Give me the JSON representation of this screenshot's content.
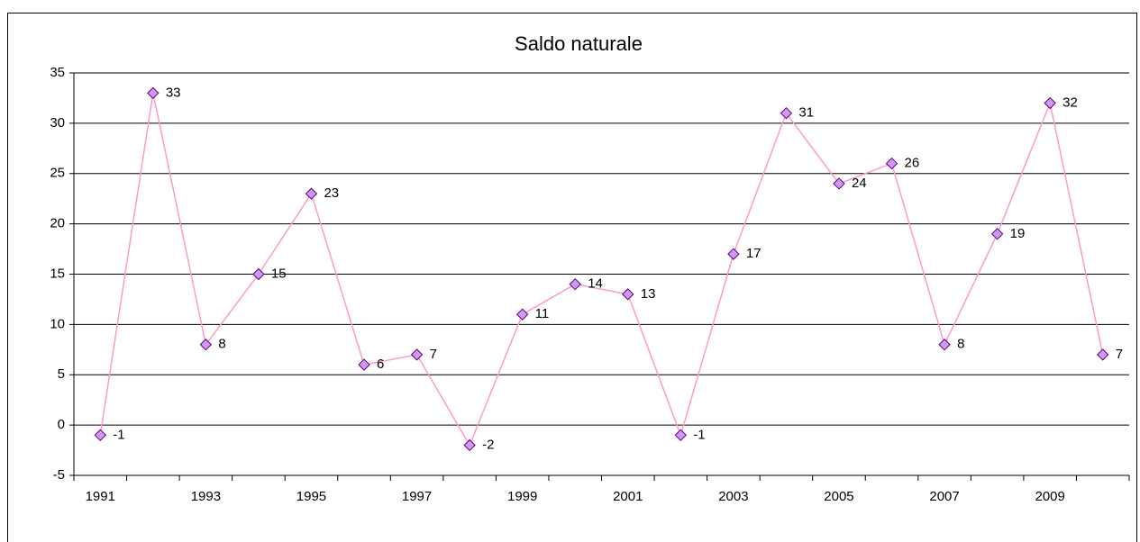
{
  "chart_data": {
    "type": "line",
    "title": "Saldo naturale",
    "categories": [
      "1991",
      null,
      "1993",
      null,
      "1995",
      null,
      "1997",
      null,
      "1999",
      null,
      "2001",
      null,
      "2003",
      null,
      "2005",
      null,
      "2007",
      null,
      "2009",
      null
    ],
    "series": [
      {
        "name": "Saldo naturale",
        "color": "#ff99cc",
        "marker_color": "#cc99ff",
        "marker_edge": "#660066",
        "values": [
          -1,
          33,
          8,
          15,
          23,
          6,
          7,
          -2,
          11,
          14,
          13,
          -1,
          17,
          31,
          24,
          26,
          8,
          19,
          32,
          7
        ]
      }
    ],
    "ylim": [
      -5,
      35
    ],
    "yticks": [
      -5,
      0,
      5,
      10,
      15,
      20,
      25,
      30,
      35
    ],
    "grid": true,
    "data_labels": true
  }
}
